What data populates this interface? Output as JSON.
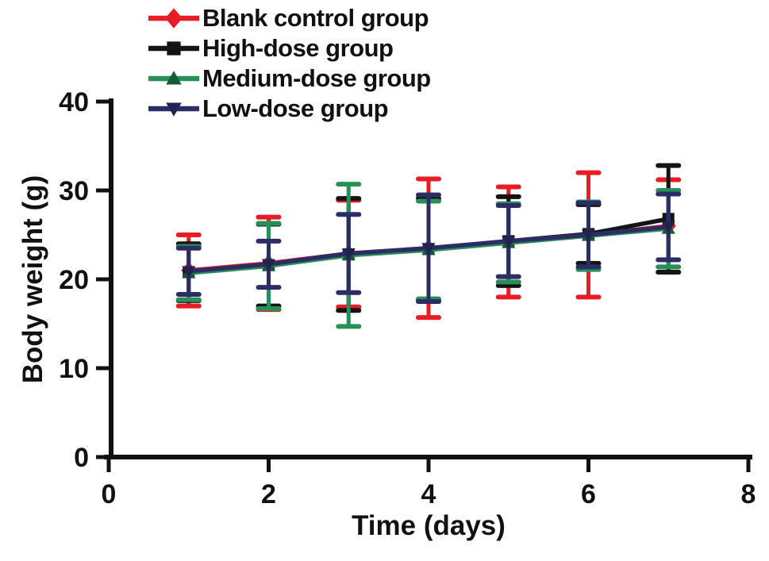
{
  "chart_data": {
    "type": "line",
    "title": "",
    "xlabel": "Time (days)",
    "ylabel": "Body weight (g)",
    "x": [
      1,
      2,
      3,
      4,
      5,
      6,
      7
    ],
    "xlim": [
      0,
      8
    ],
    "ylim": [
      0,
      40
    ],
    "x_ticks": [
      "0",
      "2",
      "4",
      "6",
      "8"
    ],
    "y_ticks": [
      "0",
      "10",
      "20",
      "30",
      "40"
    ],
    "grid": false,
    "error_bars": true,
    "legend_position": "top-left",
    "axis_color": "#111111",
    "series": [
      {
        "name": "Blank control group",
        "color": "#e81c24",
        "marker_color": "#e81c24",
        "marker": "diamond",
        "values": [
          21.0,
          21.8,
          22.9,
          23.5,
          24.2,
          25.0,
          26.0
        ],
        "errors": [
          4.0,
          5.2,
          6.0,
          7.8,
          6.2,
          7.0,
          5.2
        ]
      },
      {
        "name": "High-dose group",
        "color": "#141414",
        "marker_color": "#141414",
        "marker": "square",
        "values": [
          20.8,
          21.6,
          22.8,
          23.4,
          24.3,
          25.1,
          26.8
        ],
        "errors": [
          3.2,
          4.6,
          6.3,
          5.7,
          5.0,
          3.3,
          6.0
        ]
      },
      {
        "name": "Medium-dose group",
        "color": "#279058",
        "marker_color": "#155c36",
        "marker": "triangle-up",
        "values": [
          20.7,
          21.5,
          22.7,
          23.3,
          24.1,
          24.9,
          25.7
        ],
        "errors": [
          3.0,
          4.8,
          8.0,
          5.5,
          4.4,
          3.8,
          4.3
        ]
      },
      {
        "name": "Low-dose group",
        "color": "#2d2d66",
        "marker_color": "#232350",
        "marker": "triangle-down",
        "values": [
          20.9,
          21.7,
          22.9,
          23.5,
          24.3,
          25.0,
          25.9
        ],
        "errors": [
          2.6,
          2.6,
          4.4,
          6.0,
          4.0,
          3.6,
          3.7
        ]
      }
    ]
  }
}
